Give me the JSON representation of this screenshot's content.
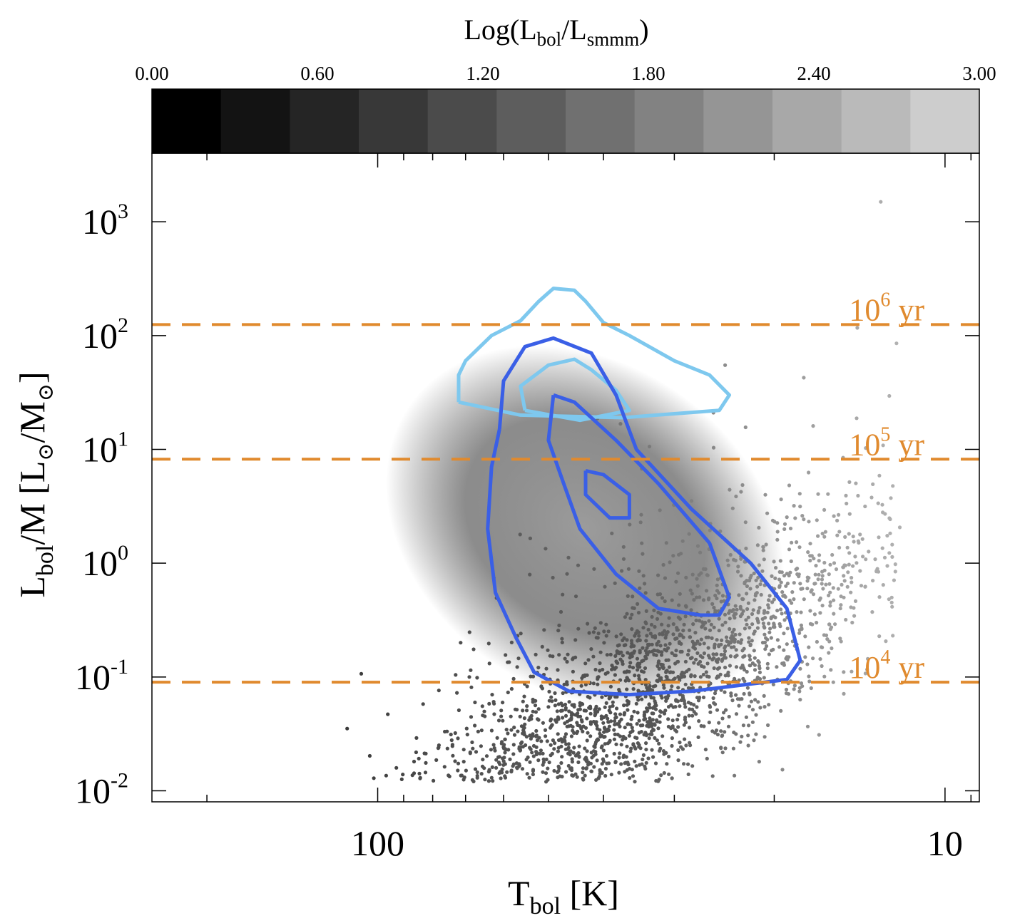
{
  "chart_data": {
    "type": "scatter",
    "title": "",
    "xlabel": "T",
    "xlabel_sub": "bol",
    "xlabel_unit": " [K]",
    "ylabel_parts": [
      "L",
      "bol",
      "/M [L",
      "⊙",
      "/M",
      "⊙",
      "]"
    ],
    "x_scale": "log",
    "x_reversed": true,
    "xlim": [
      250,
      8.7
    ],
    "x_ticks": [
      {
        "value": 100,
        "label": "100"
      },
      {
        "value": 10,
        "label": "10"
      }
    ],
    "y_scale": "log",
    "ylim": [
      0.008,
      4000
    ],
    "y_ticks": [
      {
        "value": 0.01,
        "base": "10",
        "exp": "-2"
      },
      {
        "value": 0.1,
        "base": "10",
        "exp": "-1"
      },
      {
        "value": 1,
        "base": "10",
        "exp": "0"
      },
      {
        "value": 10,
        "base": "10",
        "exp": "1"
      },
      {
        "value": 100,
        "base": "10",
        "exp": "2"
      },
      {
        "value": 1000,
        "base": "10",
        "exp": "3"
      }
    ],
    "colorbar": {
      "label_main": "Log(L",
      "label_sub1": "bol",
      "label_mid": "/L",
      "label_sub2": "smmm",
      "label_end": ")",
      "range": [
        0,
        3
      ],
      "tick_labels": [
        "0.00",
        "0.60",
        "1.20",
        "1.80",
        "2.40",
        "3.00"
      ],
      "levels": 12
    },
    "age_lines": [
      {
        "value": 0.09,
        "base": "10",
        "exp": "4",
        "unit": " yr",
        "color": "#E08A2E"
      },
      {
        "value": 8.2,
        "base": "10",
        "exp": "5",
        "unit": " yr",
        "color": "#E08A2E"
      },
      {
        "value": 125,
        "base": "10",
        "exp": "6",
        "unit": " yr",
        "color": "#E08A2E"
      }
    ],
    "contours": [
      {
        "name": "light-blue-outer",
        "color": "#7EC8EE",
        "points": [
          [
            72,
            26
          ],
          [
            72,
            45
          ],
          [
            70,
            60
          ],
          [
            63,
            100
          ],
          [
            56,
            135
          ],
          [
            52,
            200
          ],
          [
            49,
            260
          ],
          [
            45,
            250
          ],
          [
            43,
            200
          ],
          [
            40,
            130
          ],
          [
            36,
            100
          ],
          [
            30,
            60
          ],
          [
            26,
            45
          ],
          [
            24,
            30
          ],
          [
            25,
            22
          ],
          [
            37,
            19
          ],
          [
            56,
            20
          ],
          [
            72,
            26
          ]
        ]
      },
      {
        "name": "light-blue-inner",
        "color": "#7EC8EE",
        "points": [
          [
            55,
            22
          ],
          [
            56,
            36
          ],
          [
            50,
            55
          ],
          [
            45,
            62
          ],
          [
            42,
            50
          ],
          [
            38,
            33
          ],
          [
            36,
            22
          ],
          [
            44,
            18
          ],
          [
            55,
            22
          ]
        ]
      },
      {
        "name": "blue-outer",
        "color": "#3A5FE6",
        "points": [
          [
            61,
            15
          ],
          [
            60,
            40
          ],
          [
            55,
            80
          ],
          [
            49,
            95
          ],
          [
            42,
            70
          ],
          [
            38,
            30
          ],
          [
            35,
            10
          ],
          [
            28,
            3
          ],
          [
            22,
            1
          ],
          [
            19,
            0.4
          ],
          [
            18,
            0.14
          ],
          [
            19,
            0.095
          ],
          [
            28,
            0.075
          ],
          [
            36,
            0.07
          ],
          [
            46,
            0.075
          ],
          [
            53,
            0.11
          ],
          [
            57,
            0.22
          ],
          [
            62,
            0.55
          ],
          [
            64,
            2
          ],
          [
            63,
            7
          ],
          [
            61,
            15
          ]
        ]
      },
      {
        "name": "blue-middle",
        "color": "#3A5FE6",
        "points": [
          [
            49,
            30
          ],
          [
            50,
            12
          ],
          [
            47,
            5
          ],
          [
            44,
            2
          ],
          [
            38,
            0.8
          ],
          [
            32,
            0.4
          ],
          [
            27,
            0.35
          ],
          [
            25,
            0.35
          ],
          [
            24,
            0.5
          ],
          [
            26,
            1.5
          ],
          [
            32,
            5
          ],
          [
            38,
            12
          ],
          [
            45,
            26
          ],
          [
            49,
            30
          ]
        ]
      },
      {
        "name": "blue-inner",
        "color": "#3A5FE6",
        "points": [
          [
            43,
            6.5
          ],
          [
            43,
            4
          ],
          [
            39,
            2.5
          ],
          [
            36,
            2.5
          ],
          [
            36,
            4
          ],
          [
            40,
            6
          ],
          [
            43,
            6.5
          ]
        ]
      }
    ]
  }
}
